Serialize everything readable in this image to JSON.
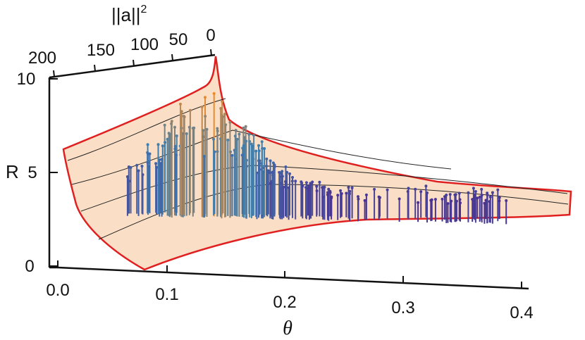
{
  "chart_data": {
    "type": "3d-surface-with-stems",
    "axes": {
      "theta": {
        "label": "θ",
        "range": [
          0.0,
          0.4
        ],
        "ticks": [
          "0.0",
          "0.1",
          "0.2",
          "0.3",
          "0.4"
        ]
      },
      "R": {
        "label": "R",
        "range": [
          0,
          10
        ],
        "ticks": [
          "0",
          "5",
          "10"
        ]
      },
      "norm_a_sq": {
        "label": "||a||",
        "label_sup": "2",
        "range": [
          0,
          200
        ],
        "ticks": [
          "200",
          "150",
          "100",
          "50",
          "0"
        ]
      }
    },
    "colors": {
      "surface_fill": "#f9dcc0",
      "surface_edge": "#e02020",
      "mesh_line": "#222222",
      "stem_low": "#4b2e8f",
      "stem_mid": "#3d7fb0",
      "stem_high": "#f08a2a"
    }
  }
}
